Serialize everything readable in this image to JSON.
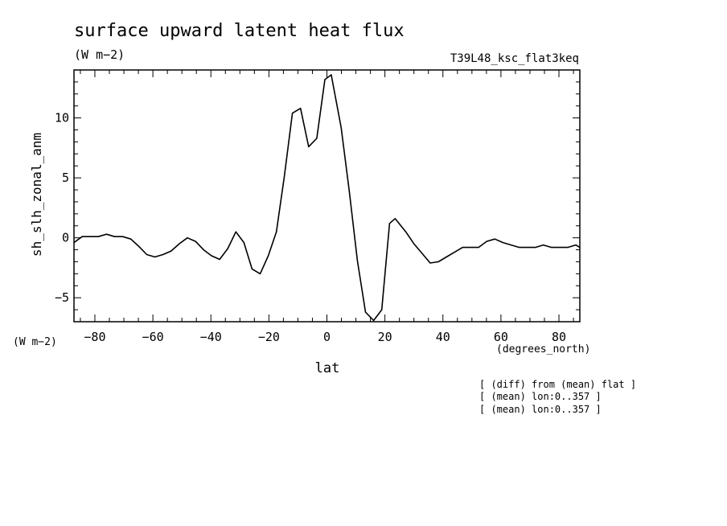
{
  "header": {
    "title": "surface upward latent heat flux",
    "units": "(W m−2)",
    "run_label": "T39L48_ksc_flat3keq"
  },
  "axes": {
    "ylabel": "sh_slh_zonal_anm",
    "xlabel": "lat",
    "xunits": "(degrees_north)",
    "yunits": "(W m−2)"
  },
  "notes": [
    "[ (diff) from (mean) flat ]",
    "[ (mean) lon:0..357 ]",
    "[ (mean) lon:0..357 ]"
  ],
  "chart_data": {
    "type": "line",
    "title": "surface upward latent heat flux",
    "xlabel": "lat",
    "ylabel": "sh_slh_zonal_anm",
    "xlim": [
      -87.2,
      87.2
    ],
    "ylim": [
      -7,
      14
    ],
    "xticks": [
      -80,
      -60,
      -40,
      -20,
      0,
      20,
      40,
      60,
      80
    ],
    "xtick_labels": [
      "−80",
      "−60",
      "−40",
      "−20",
      "0",
      "20",
      "40",
      "60",
      "80"
    ],
    "yticks": [
      -5,
      0,
      5,
      10
    ],
    "ytick_labels": [
      "−5",
      "0",
      "5",
      "10"
    ],
    "grid": false,
    "series": [
      {
        "x": [
          -87.2,
          -84.4,
          -81.6,
          -78.8,
          -76.0,
          -73.2,
          -70.4,
          -67.6,
          -64.9,
          -62.1,
          -59.3,
          -56.5,
          -53.7,
          -50.9,
          -48.1,
          -45.3,
          -42.5,
          -39.8,
          -37.0,
          -34.2,
          -31.4,
          -28.6,
          -25.8,
          -23.0,
          -20.2,
          -17.4,
          -14.7,
          -11.9,
          -9.1,
          -6.3,
          -3.5,
          -0.7,
          1.5,
          4.9,
          7.7,
          10.5,
          13.3,
          16.1,
          18.9,
          21.6,
          23.5,
          27.2,
          30.0,
          32.8,
          35.6,
          38.4,
          41.2,
          44.0,
          46.8,
          49.5,
          52.3,
          55.1,
          57.9,
          60.7,
          63.5,
          66.3,
          69.1,
          71.9,
          74.6,
          77.4,
          80.2,
          83.0,
          85.8,
          87.2
        ],
        "values": [
          -0.4,
          0.1,
          0.1,
          0.1,
          0.3,
          0.1,
          0.1,
          -0.1,
          -0.7,
          -1.4,
          -1.6,
          -1.4,
          -1.1,
          -0.5,
          0.0,
          -0.3,
          -1.0,
          -1.5,
          -1.8,
          -0.9,
          0.5,
          -0.4,
          -2.6,
          -3.0,
          -1.5,
          0.5,
          5.1,
          10.4,
          10.8,
          7.6,
          8.3,
          13.2,
          13.6,
          9.2,
          3.9,
          -1.9,
          -6.2,
          -6.9,
          -6.0,
          1.2,
          1.6,
          0.5,
          -0.5,
          -1.3,
          -2.1,
          -2.0,
          -1.6,
          -1.2,
          -0.8,
          -0.8,
          -0.8,
          -0.3,
          -0.1,
          -0.4,
          -0.6,
          -0.8,
          -0.8,
          -0.8,
          -0.6,
          -0.8,
          -0.8,
          -0.8,
          -0.6,
          -0.8
        ]
      }
    ]
  }
}
